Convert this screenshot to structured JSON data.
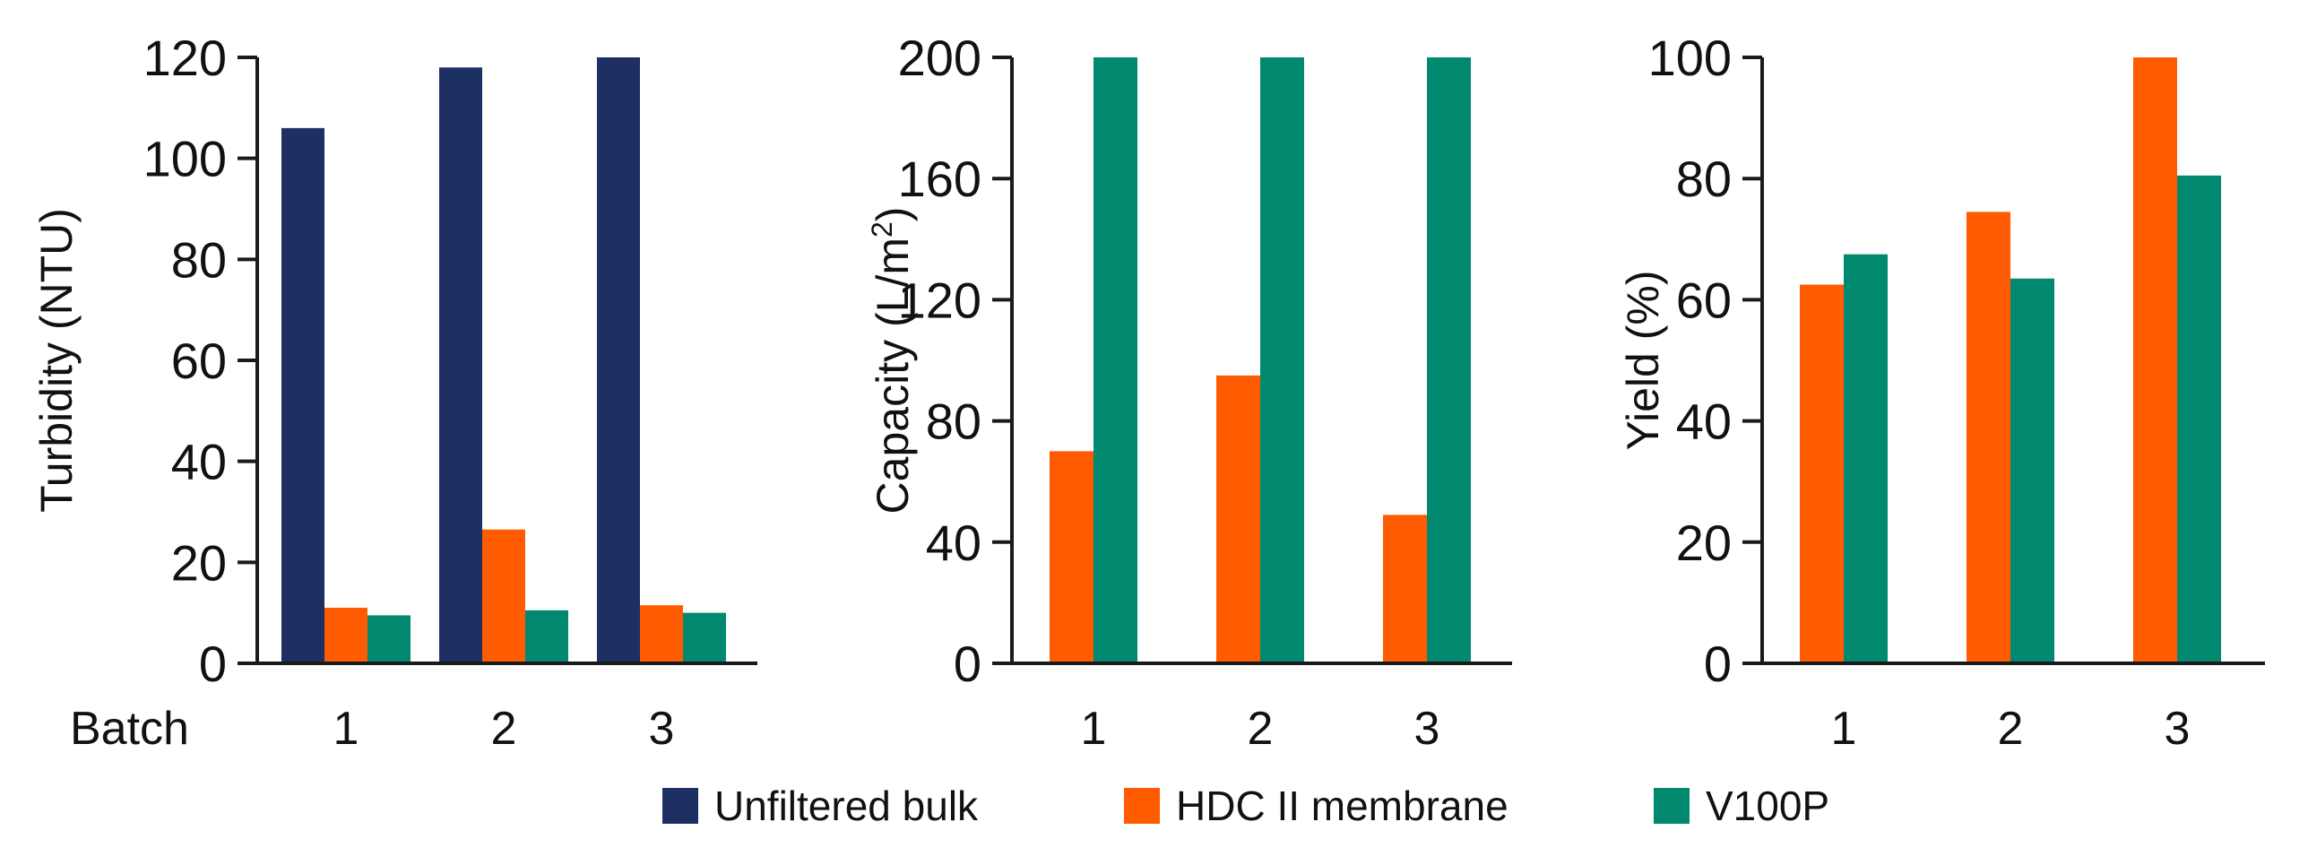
{
  "chart_data": [
    {
      "type": "bar",
      "ylabel": "Turbidity (NTU)",
      "xlabel": "Batch",
      "categories": [
        "1",
        "2",
        "3"
      ],
      "ylim": [
        0,
        120
      ],
      "yticks": [
        0,
        20,
        40,
        60,
        80,
        100,
        120
      ],
      "series": [
        {
          "name": "Unfiltered bulk",
          "color": "#1d2f63",
          "values": [
            106,
            118,
            120
          ]
        },
        {
          "name": "HDC II membrane",
          "color": "#ff5b00",
          "values": [
            11,
            26.5,
            11.5
          ]
        },
        {
          "name": "V100P",
          "color": "#00896e",
          "values": [
            9.5,
            10.5,
            10
          ]
        }
      ]
    },
    {
      "type": "bar",
      "ylabel": "Capacity (L/m",
      "ylabel_sup": "2",
      "ylabel_end": ")",
      "categories": [
        "1",
        "2",
        "3"
      ],
      "ylim": [
        0,
        200
      ],
      "yticks": [
        0,
        40,
        80,
        120,
        160,
        200
      ],
      "series": [
        {
          "name": "HDC II membrane",
          "color": "#ff5b00",
          "values": [
            70,
            95,
            49
          ]
        },
        {
          "name": "V100P",
          "color": "#00896e",
          "values": [
            200,
            200,
            200
          ]
        }
      ]
    },
    {
      "type": "bar",
      "ylabel": "Yield (%)",
      "categories": [
        "1",
        "2",
        "3"
      ],
      "ylim": [
        0,
        100
      ],
      "yticks": [
        0,
        20,
        40,
        60,
        80,
        100
      ],
      "series": [
        {
          "name": "HDC II membrane",
          "color": "#ff5b00",
          "values": [
            62.5,
            74.5,
            100
          ]
        },
        {
          "name": "V100P",
          "color": "#00896e",
          "values": [
            67.5,
            63.5,
            80.5
          ]
        }
      ]
    }
  ],
  "legend": {
    "position": "bottom",
    "items": [
      {
        "label": "Unfiltered bulk",
        "color": "#1d2f63"
      },
      {
        "label": "HDC II membrane",
        "color": "#ff5b00"
      },
      {
        "label": "V100P",
        "color": "#00896e"
      }
    ]
  }
}
